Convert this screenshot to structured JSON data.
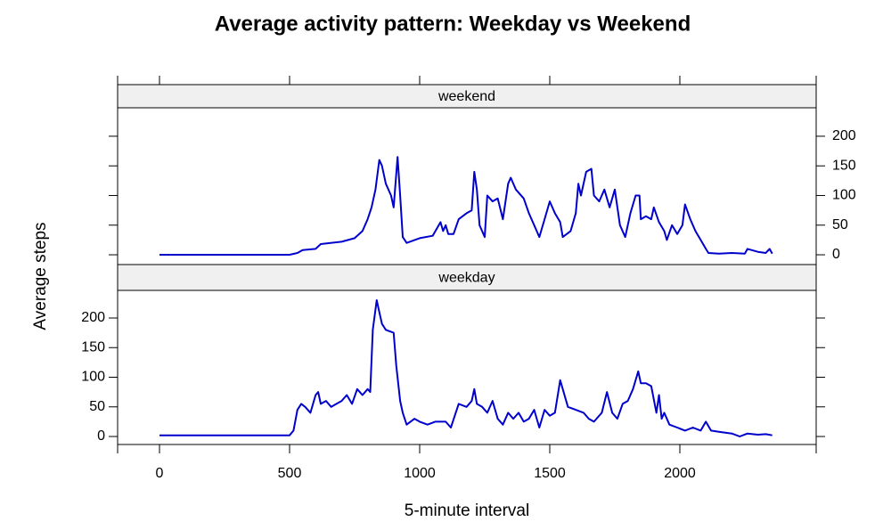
{
  "title": "Average activity pattern: Weekday vs Weekend",
  "xlabel": "5-minute interval",
  "ylabel": "Average steps",
  "chart_data": [
    {
      "type": "line",
      "x": [
        0,
        500,
        530,
        550,
        600,
        620,
        700,
        750,
        780,
        800,
        815,
        830,
        845,
        855,
        870,
        890,
        900,
        915,
        925,
        935,
        950,
        1000,
        1050,
        1080,
        1090,
        1100,
        1110,
        1130,
        1150,
        1180,
        1200,
        1210,
        1220,
        1230,
        1250,
        1260,
        1280,
        1300,
        1320,
        1340,
        1350,
        1370,
        1400,
        1420,
        1440,
        1460,
        1480,
        1500,
        1520,
        1540,
        1550,
        1580,
        1600,
        1610,
        1620,
        1640,
        1660,
        1670,
        1690,
        1710,
        1730,
        1750,
        1770,
        1790,
        1810,
        1830,
        1845,
        1850,
        1870,
        1890,
        1900,
        1920,
        1940,
        1950,
        1970,
        1990,
        2010,
        2020,
        2040,
        2060,
        2080,
        2100,
        2110,
        2150,
        2200,
        2250,
        2260,
        2300,
        2330,
        2345,
        2355
      ],
      "series": [
        {
          "name": "weekend",
          "color": "#0000cd",
          "values": [
            0,
            0,
            3,
            8,
            10,
            18,
            22,
            28,
            40,
            60,
            80,
            110,
            160,
            150,
            120,
            100,
            80,
            165,
            100,
            30,
            20,
            28,
            32,
            55,
            40,
            50,
            35,
            35,
            60,
            70,
            75,
            140,
            110,
            50,
            30,
            100,
            90,
            95,
            60,
            120,
            130,
            110,
            95,
            70,
            50,
            30,
            60,
            90,
            70,
            55,
            30,
            40,
            70,
            120,
            100,
            140,
            145,
            100,
            90,
            110,
            80,
            110,
            50,
            30,
            70,
            100,
            100,
            60,
            65,
            60,
            80,
            55,
            40,
            25,
            50,
            35,
            50,
            85,
            60,
            40,
            25,
            10,
            3,
            2,
            3,
            2,
            10,
            5,
            3,
            10,
            2
          ]
        }
      ],
      "xlim": [
        -161,
        2524
      ],
      "ylim": [
        -16.5,
        248
      ],
      "xticks": [
        0,
        500,
        1000,
        1500,
        2000
      ],
      "yticks": [
        0,
        50,
        100,
        150,
        200
      ]
    },
    {
      "type": "line",
      "x": [
        0,
        500,
        515,
        530,
        545,
        560,
        580,
        600,
        610,
        620,
        640,
        660,
        680,
        700,
        720,
        740,
        760,
        780,
        800,
        810,
        820,
        835,
        845,
        855,
        870,
        900,
        910,
        925,
        935,
        950,
        980,
        1000,
        1030,
        1060,
        1100,
        1120,
        1150,
        1180,
        1200,
        1210,
        1220,
        1240,
        1260,
        1280,
        1300,
        1320,
        1340,
        1360,
        1380,
        1400,
        1420,
        1440,
        1460,
        1480,
        1500,
        1520,
        1540,
        1550,
        1570,
        1600,
        1630,
        1650,
        1670,
        1700,
        1720,
        1740,
        1760,
        1780,
        1800,
        1820,
        1840,
        1850,
        1870,
        1890,
        1910,
        1920,
        1930,
        1940,
        1960,
        1990,
        2020,
        2050,
        2080,
        2100,
        2120,
        2150,
        2200,
        2230,
        2260,
        2300,
        2330,
        2355
      ],
      "series": [
        {
          "name": "weekday",
          "color": "#0000cd",
          "values": [
            2,
            2,
            10,
            45,
            55,
            50,
            40,
            70,
            75,
            55,
            60,
            50,
            55,
            60,
            70,
            55,
            80,
            70,
            80,
            75,
            180,
            230,
            210,
            190,
            180,
            175,
            120,
            60,
            40,
            20,
            30,
            25,
            20,
            25,
            25,
            15,
            55,
            50,
            60,
            80,
            55,
            50,
            40,
            60,
            30,
            20,
            40,
            30,
            40,
            25,
            30,
            45,
            15,
            45,
            35,
            40,
            95,
            80,
            50,
            45,
            40,
            30,
            25,
            40,
            75,
            40,
            30,
            55,
            60,
            80,
            110,
            90,
            90,
            85,
            40,
            70,
            30,
            40,
            20,
            15,
            10,
            15,
            10,
            25,
            10,
            8,
            5,
            0,
            5,
            3,
            4,
            2
          ]
        }
      ],
      "xlim": [
        -161,
        2524
      ],
      "ylim": [
        -13.5,
        246.6
      ],
      "xticks": [
        0,
        500,
        1000,
        1500,
        2000
      ],
      "yticks": [
        0,
        50,
        100,
        150,
        200
      ]
    }
  ]
}
